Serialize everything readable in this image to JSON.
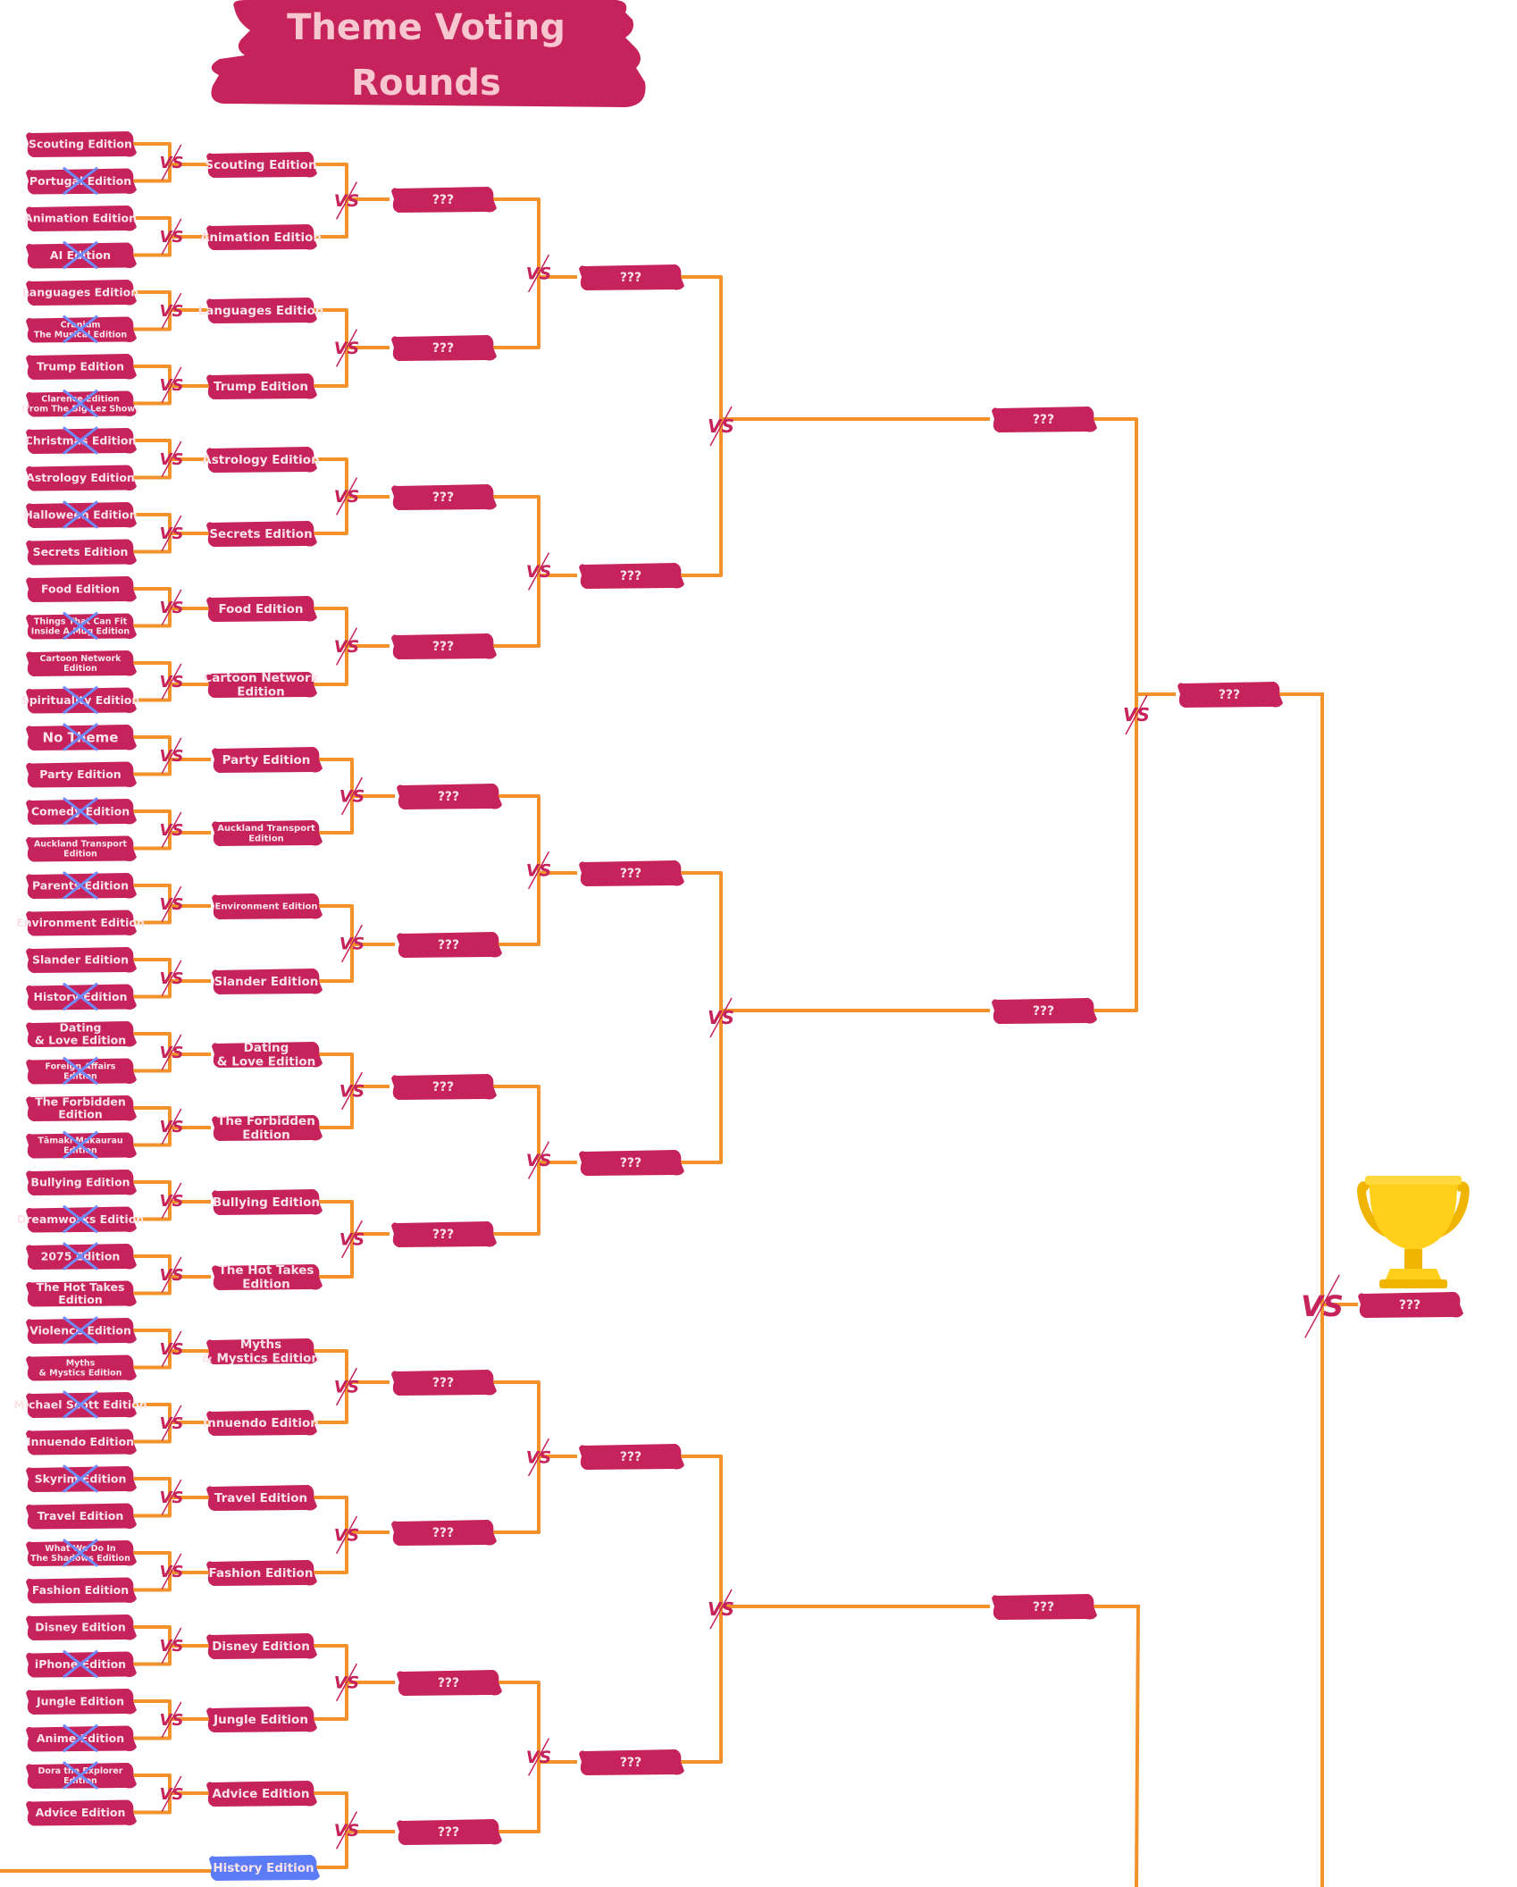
{
  "title": {
    "line1": "Theme Voting",
    "line2": "Rounds"
  },
  "vs_label": "VS",
  "colors": {
    "tag": "#c6235c",
    "tag_text": "#fbe3e8",
    "line": "#f3922a",
    "eliminated_mark": "#6f8cff",
    "highlight_tag": "#5b7cf6",
    "title_text": "#f7c6cf"
  },
  "round1": [
    {
      "label": "Scouting Edition",
      "eliminated": false
    },
    {
      "label": "Portugal Edition",
      "eliminated": true
    },
    {
      "label": "Animation Edition",
      "eliminated": false
    },
    {
      "label": "AI Edition",
      "eliminated": true
    },
    {
      "label": "Languages Edition",
      "eliminated": false
    },
    {
      "label": "Cranium\nThe Musical Edition",
      "eliminated": true
    },
    {
      "label": "Trump Edition",
      "eliminated": false
    },
    {
      "label": "Clarence Edition\n(from The Big Lez Show)",
      "eliminated": true
    },
    {
      "label": "Christmas Edition",
      "eliminated": true
    },
    {
      "label": "Astrology Edition",
      "eliminated": false
    },
    {
      "label": "Halloween Edition",
      "eliminated": true
    },
    {
      "label": "Secrets Edition",
      "eliminated": false
    },
    {
      "label": "Food Edition",
      "eliminated": false
    },
    {
      "label": "Things That Can Fit\nInside A Mug Edition",
      "eliminated": true
    },
    {
      "label": "Cartoon Network\nEdition",
      "eliminated": false
    },
    {
      "label": "Spirituality Edition",
      "eliminated": true
    },
    {
      "label": "No Theme",
      "eliminated": true
    },
    {
      "label": "Party Edition",
      "eliminated": false
    },
    {
      "label": "Comedy Edition",
      "eliminated": true
    },
    {
      "label": "Auckland Transport\nEdition",
      "eliminated": false
    },
    {
      "label": "Parents Edition",
      "eliminated": true
    },
    {
      "label": "Environment Edition",
      "eliminated": false
    },
    {
      "label": "Slander Edition",
      "eliminated": false
    },
    {
      "label": "History Edition",
      "eliminated": true
    },
    {
      "label": "Dating\n& Love Edition",
      "eliminated": false
    },
    {
      "label": "Foreign Affairs\nEdition",
      "eliminated": true
    },
    {
      "label": "The Forbidden\nEdition",
      "eliminated": false
    },
    {
      "label": "Tāmaki Makaurau\nEdition",
      "eliminated": true
    },
    {
      "label": "Bullying Edition",
      "eliminated": false
    },
    {
      "label": "Dreamworks Edition",
      "eliminated": true
    },
    {
      "label": "2075 Edition",
      "eliminated": true
    },
    {
      "label": "The Hot Takes\nEdition",
      "eliminated": false
    },
    {
      "label": "Violence Edition",
      "eliminated": true
    },
    {
      "label": "Myths\n& Mystics Edition",
      "eliminated": false
    },
    {
      "label": "Michael Scott Edition",
      "eliminated": true
    },
    {
      "label": "Innuendo Edition",
      "eliminated": false
    },
    {
      "label": "Skyrim Edition",
      "eliminated": true
    },
    {
      "label": "Travel Edition",
      "eliminated": false
    },
    {
      "label": "What We Do In\nThe Shadows Edition",
      "eliminated": true
    },
    {
      "label": "Fashion Edition",
      "eliminated": false
    },
    {
      "label": "Disney Edition",
      "eliminated": false
    },
    {
      "label": "iPhone Edition",
      "eliminated": true
    },
    {
      "label": "Jungle Edition",
      "eliminated": false
    },
    {
      "label": "Anime Edition",
      "eliminated": true
    },
    {
      "label": "Dora the Explorer\nEdition",
      "eliminated": true
    },
    {
      "label": "Advice Edition",
      "eliminated": false
    }
  ],
  "round2": [
    {
      "label": "Scouting Edition"
    },
    {
      "label": "Animation Edition"
    },
    {
      "label": "Languages Edition"
    },
    {
      "label": "Trump Edition"
    },
    {
      "label": "Astrology Edition"
    },
    {
      "label": "Secrets Edition"
    },
    {
      "label": "Food Edition"
    },
    {
      "label": "Cartoon Network\nEdition"
    },
    {
      "label": "Party Edition"
    },
    {
      "label": "Auckland Transport\nEdition"
    },
    {
      "label": "Environment Edition"
    },
    {
      "label": "Slander Edition"
    },
    {
      "label": "Dating\n& Love Edition"
    },
    {
      "label": "The Forbidden\nEdition"
    },
    {
      "label": "Bullying Edition"
    },
    {
      "label": "The Hot Takes\nEdition"
    },
    {
      "label": "Myths\n& Mystics Edition"
    },
    {
      "label": "Innuendo Edition"
    },
    {
      "label": "Travel Edition"
    },
    {
      "label": "Fashion Edition"
    },
    {
      "label": "Disney Edition"
    },
    {
      "label": "Jungle Edition"
    },
    {
      "label": "Advice Edition"
    },
    {
      "label": "History Edition",
      "highlight": true
    }
  ],
  "round3": [
    "???",
    "???",
    "???",
    "???",
    "???",
    "???",
    "???",
    "???",
    "???",
    "???",
    "???",
    "???"
  ],
  "round4": [
    "???",
    "???",
    "???",
    "???",
    "???",
    "???"
  ],
  "round5": [
    "???",
    "???",
    "???"
  ],
  "round6": [
    "???"
  ],
  "final": [
    "???"
  ]
}
